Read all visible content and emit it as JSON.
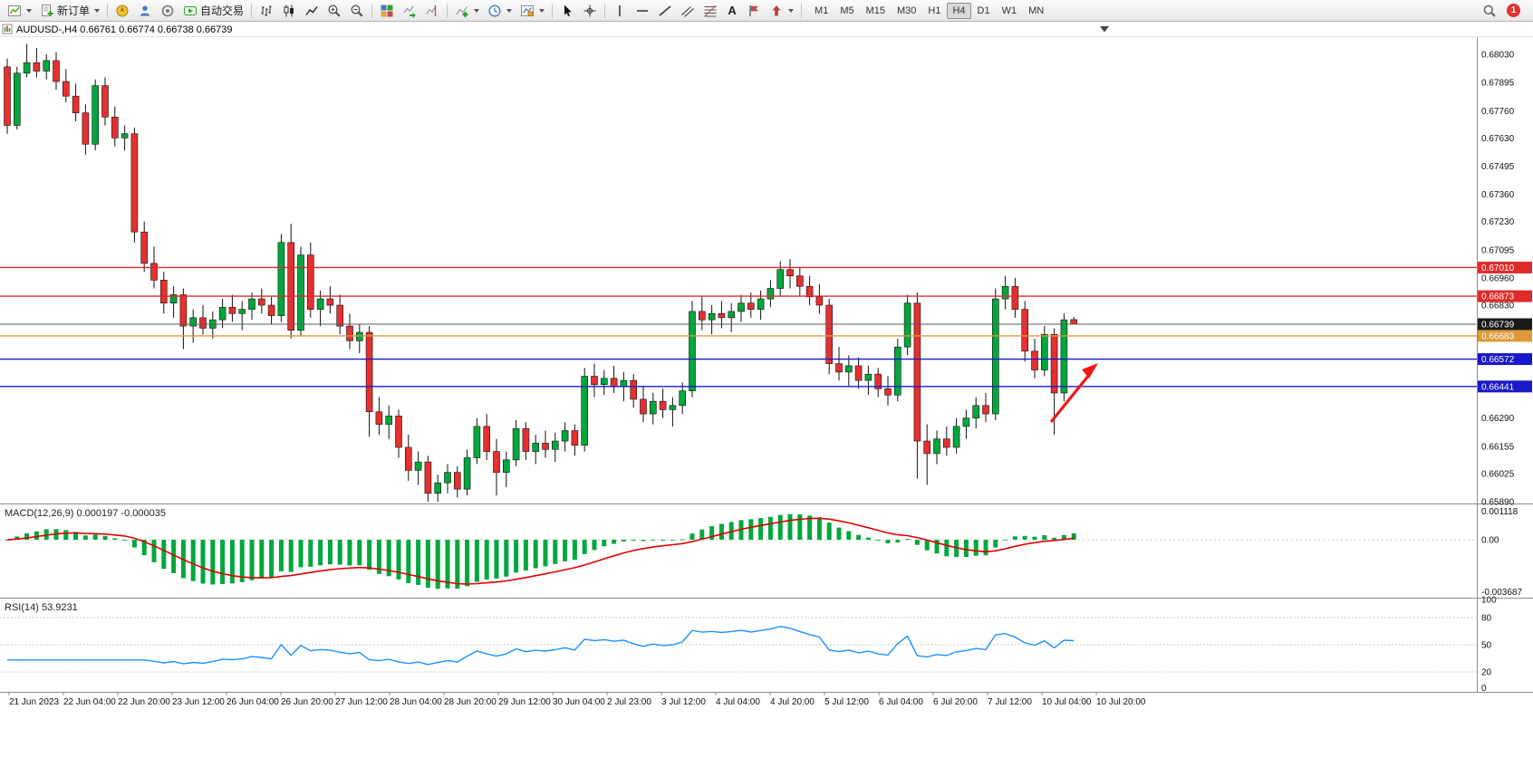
{
  "toolbar": {
    "new_order_label": "新订单",
    "auto_trading_label": "自动交易",
    "text_tool_glyph": "A",
    "timeframes": [
      "M1",
      "M5",
      "M15",
      "M30",
      "H1",
      "H4",
      "D1",
      "W1",
      "MN"
    ],
    "active_timeframe": "H4",
    "notification_badge": "1"
  },
  "chart_data": {
    "type": "candlestick+macd+rsi",
    "symbol": "AUDUSD-,H4",
    "ohlc_display": "0.66761 0.66774 0.66738 0.66739",
    "main": {
      "type": "candlestick",
      "up_color": "#00A73C",
      "down_color": "#E53030",
      "price_range": [
        0.6589,
        0.6816
      ],
      "current_price": "0.66739",
      "y_ticks": [
        "0.68030",
        "0.67895",
        "0.67760",
        "0.67630",
        "0.67495",
        "0.67360",
        "0.67230",
        "0.67095",
        "0.66960",
        "0.66830",
        "0.66290",
        "0.66155",
        "0.66025",
        "0.65890"
      ],
      "x_labels": [
        "21 Jun 2023",
        "22 Jun 04:00",
        "22 Jun 20:00",
        "23 Jun 12:00",
        "26 Jun 04:00",
        "26 Jun 20:00",
        "27 Jun 12:00",
        "28 Jun 04:00",
        "28 Jun 20:00",
        "29 Jun 12:00",
        "30 Jun 04:00",
        "2 Jul 23:00",
        "3 Jul 12:00",
        "4 Jul 04:00",
        "4 Jul 20:00",
        "5 Jul 12:00",
        "6 Jul 04:00",
        "6 Jul 20:00",
        "7 Jul 12:00",
        "10 Jul 04:00",
        "10 Jul 20:00"
      ],
      "hlines": [
        {
          "price": 0.6701,
          "label": "0.67010",
          "color": "#DE2B2B"
        },
        {
          "price": 0.66873,
          "label": "0.66873",
          "color": "#DE2B2B"
        },
        {
          "price": 0.66739,
          "label": "0.66739",
          "color": "#1A1A1A",
          "line_color": "#5A5A5A",
          "style": "current"
        },
        {
          "price": 0.66683,
          "label": "0.66683",
          "color": "#DE9A3A"
        },
        {
          "price": 0.66572,
          "label": "0.66572",
          "color": "#1919C8"
        },
        {
          "price": 0.66441,
          "label": "0.66441",
          "color": "#1919C8"
        }
      ],
      "arrow_annotation": {
        "color": "#F01818",
        "direction": "up-right"
      },
      "candles": [
        [
          0.6797,
          0.6801,
          0.6765,
          0.6769
        ],
        [
          0.6769,
          0.6797,
          0.6767,
          0.6794
        ],
        [
          0.6794,
          0.6808,
          0.6792,
          0.6799
        ],
        [
          0.6799,
          0.6806,
          0.6792,
          0.6795
        ],
        [
          0.6795,
          0.6803,
          0.6791,
          0.68
        ],
        [
          0.68,
          0.6804,
          0.6786,
          0.679
        ],
        [
          0.679,
          0.6796,
          0.678,
          0.6783
        ],
        [
          0.6783,
          0.6789,
          0.6771,
          0.6775
        ],
        [
          0.6775,
          0.6779,
          0.6755,
          0.676
        ],
        [
          0.676,
          0.6791,
          0.6757,
          0.6788
        ],
        [
          0.6788,
          0.6792,
          0.6769,
          0.6773
        ],
        [
          0.6773,
          0.6778,
          0.6759,
          0.6763
        ],
        [
          0.6763,
          0.6769,
          0.6757,
          0.6765
        ],
        [
          0.6765,
          0.6768,
          0.6713,
          0.6718
        ],
        [
          0.6718,
          0.6723,
          0.6699,
          0.6703
        ],
        [
          0.6703,
          0.6711,
          0.6691,
          0.6695
        ],
        [
          0.6695,
          0.6699,
          0.6679,
          0.6684
        ],
        [
          0.6684,
          0.6692,
          0.6677,
          0.6688
        ],
        [
          0.6688,
          0.6691,
          0.6662,
          0.6673
        ],
        [
          0.6673,
          0.6681,
          0.6665,
          0.6677
        ],
        [
          0.6677,
          0.6683,
          0.6669,
          0.6672
        ],
        [
          0.6672,
          0.668,
          0.6667,
          0.6676
        ],
        [
          0.6676,
          0.6686,
          0.6672,
          0.6682
        ],
        [
          0.6682,
          0.6688,
          0.6675,
          0.6679
        ],
        [
          0.6679,
          0.6685,
          0.6671,
          0.6681
        ],
        [
          0.6681,
          0.6689,
          0.6676,
          0.6686
        ],
        [
          0.6686,
          0.6691,
          0.6679,
          0.6683
        ],
        [
          0.6683,
          0.6687,
          0.6674,
          0.6678
        ],
        [
          0.6678,
          0.6717,
          0.6675,
          0.6713
        ],
        [
          0.6713,
          0.6722,
          0.6667,
          0.6671
        ],
        [
          0.6671,
          0.6711,
          0.6668,
          0.6707
        ],
        [
          0.6707,
          0.6713,
          0.6677,
          0.6681
        ],
        [
          0.6681,
          0.669,
          0.6673,
          0.6686
        ],
        [
          0.6686,
          0.6692,
          0.6679,
          0.6683
        ],
        [
          0.6683,
          0.6688,
          0.6669,
          0.6673
        ],
        [
          0.6673,
          0.6679,
          0.6662,
          0.6666
        ],
        [
          0.6666,
          0.6674,
          0.666,
          0.667
        ],
        [
          0.667,
          0.6673,
          0.662,
          0.6632
        ],
        [
          0.6632,
          0.6639,
          0.6621,
          0.6626
        ],
        [
          0.6626,
          0.6635,
          0.6619,
          0.663
        ],
        [
          0.663,
          0.6633,
          0.661,
          0.6615
        ],
        [
          0.6615,
          0.6621,
          0.6599,
          0.6604
        ],
        [
          0.6604,
          0.6613,
          0.6597,
          0.6608
        ],
        [
          0.6608,
          0.6611,
          0.6589,
          0.6593
        ],
        [
          0.6593,
          0.6602,
          0.6589,
          0.6598
        ],
        [
          0.6598,
          0.6607,
          0.6593,
          0.6603
        ],
        [
          0.6603,
          0.6606,
          0.6591,
          0.6595
        ],
        [
          0.6595,
          0.6614,
          0.6592,
          0.661
        ],
        [
          0.661,
          0.6629,
          0.6607,
          0.6625
        ],
        [
          0.6625,
          0.6631,
          0.6609,
          0.6613
        ],
        [
          0.6613,
          0.6619,
          0.6592,
          0.6603
        ],
        [
          0.6603,
          0.6613,
          0.6596,
          0.6609
        ],
        [
          0.6609,
          0.6628,
          0.6606,
          0.6624
        ],
        [
          0.6624,
          0.6627,
          0.6609,
          0.6613
        ],
        [
          0.6613,
          0.6621,
          0.6607,
          0.6617
        ],
        [
          0.6617,
          0.6623,
          0.661,
          0.6614
        ],
        [
          0.6614,
          0.6622,
          0.6608,
          0.6618
        ],
        [
          0.6618,
          0.6627,
          0.6613,
          0.6623
        ],
        [
          0.6623,
          0.6626,
          0.6611,
          0.6616
        ],
        [
          0.6616,
          0.6653,
          0.6613,
          0.6649
        ],
        [
          0.6649,
          0.6655,
          0.6639,
          0.6645
        ],
        [
          0.6645,
          0.6652,
          0.664,
          0.6648
        ],
        [
          0.6648,
          0.6654,
          0.6641,
          0.6644
        ],
        [
          0.6644,
          0.6651,
          0.6637,
          0.6647
        ],
        [
          0.6647,
          0.665,
          0.6634,
          0.6638
        ],
        [
          0.6638,
          0.6644,
          0.6627,
          0.6631
        ],
        [
          0.6631,
          0.6641,
          0.6626,
          0.6637
        ],
        [
          0.6637,
          0.6643,
          0.6629,
          0.6633
        ],
        [
          0.6633,
          0.6639,
          0.6625,
          0.6635
        ],
        [
          0.6635,
          0.6646,
          0.6631,
          0.6642
        ],
        [
          0.6642,
          0.6685,
          0.6639,
          0.668
        ],
        [
          0.668,
          0.6687,
          0.6671,
          0.6676
        ],
        [
          0.6676,
          0.6683,
          0.6669,
          0.6679
        ],
        [
          0.6679,
          0.6685,
          0.6672,
          0.6677
        ],
        [
          0.6677,
          0.6684,
          0.667,
          0.668
        ],
        [
          0.668,
          0.6688,
          0.6675,
          0.6684
        ],
        [
          0.6684,
          0.6689,
          0.6677,
          0.6681
        ],
        [
          0.6681,
          0.669,
          0.6676,
          0.6686
        ],
        [
          0.6686,
          0.6695,
          0.6682,
          0.6691
        ],
        [
          0.6691,
          0.6704,
          0.6687,
          0.67
        ],
        [
          0.67,
          0.6705,
          0.6691,
          0.6697
        ],
        [
          0.6697,
          0.6701,
          0.6687,
          0.6692
        ],
        [
          0.6692,
          0.6697,
          0.6683,
          0.6687
        ],
        [
          0.6687,
          0.6693,
          0.6679,
          0.6683
        ],
        [
          0.6683,
          0.6686,
          0.665,
          0.6655
        ],
        [
          0.6655,
          0.6663,
          0.6647,
          0.6651
        ],
        [
          0.6651,
          0.6659,
          0.6644,
          0.6654
        ],
        [
          0.6654,
          0.6658,
          0.6643,
          0.6647
        ],
        [
          0.6647,
          0.6654,
          0.664,
          0.665
        ],
        [
          0.665,
          0.6653,
          0.6639,
          0.6643
        ],
        [
          0.6643,
          0.6649,
          0.6635,
          0.664
        ],
        [
          0.664,
          0.6667,
          0.6637,
          0.6663
        ],
        [
          0.6663,
          0.6688,
          0.6659,
          0.6684
        ],
        [
          0.6684,
          0.6689,
          0.66,
          0.6618
        ],
        [
          0.6618,
          0.6626,
          0.6597,
          0.6612
        ],
        [
          0.6612,
          0.6623,
          0.6607,
          0.6619
        ],
        [
          0.6619,
          0.6625,
          0.6611,
          0.6615
        ],
        [
          0.6615,
          0.6629,
          0.6612,
          0.6625
        ],
        [
          0.6625,
          0.6633,
          0.6619,
          0.6629
        ],
        [
          0.6629,
          0.6639,
          0.6624,
          0.6635
        ],
        [
          0.6635,
          0.6641,
          0.6627,
          0.6631
        ],
        [
          0.6631,
          0.6691,
          0.6628,
          0.6686
        ],
        [
          0.6686,
          0.6697,
          0.6681,
          0.6692
        ],
        [
          0.6692,
          0.6696,
          0.6677,
          0.6681
        ],
        [
          0.6681,
          0.6685,
          0.6656,
          0.6661
        ],
        [
          0.6661,
          0.6667,
          0.6648,
          0.6652
        ],
        [
          0.6652,
          0.6673,
          0.6649,
          0.6669
        ],
        [
          0.6669,
          0.6672,
          0.6621,
          0.6641
        ],
        [
          0.6641,
          0.6679,
          0.6637,
          0.6676
        ],
        [
          0.66761,
          0.66774,
          0.66738,
          0.66739
        ]
      ]
    },
    "macd": {
      "type": "macd",
      "label": "MACD(12,26,9) 0.000197 -0.000035",
      "params": "12,26,9",
      "macd_value": "0.000197",
      "signal_value": "-0.000035",
      "histogram_color": "#00A73C",
      "signal_color": "#E00000",
      "y_ticks": [
        "0.001118",
        "0.00",
        "-0.003687"
      ],
      "derived_from": "candles"
    },
    "rsi": {
      "type": "line",
      "label": "RSI(14) 53.9231",
      "period": 14,
      "value": "53.9231",
      "line_color": "#1E90FF",
      "levels": [
        80,
        50,
        20
      ],
      "range": [
        0,
        100
      ],
      "y_ticks": [
        "100",
        "80",
        "50",
        "20",
        "0"
      ],
      "derived_from": "candles"
    }
  }
}
